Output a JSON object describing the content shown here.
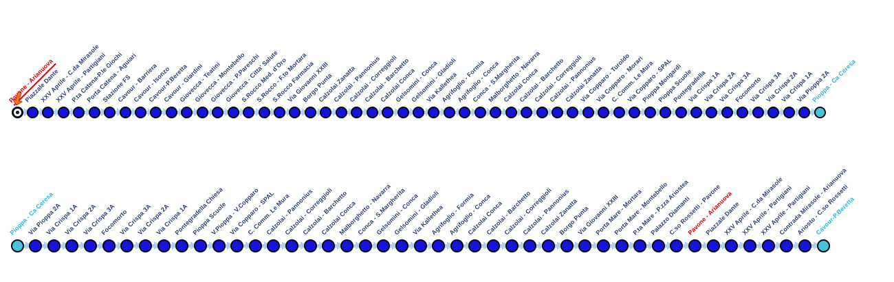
{
  "diagram": {
    "type": "transit-route-stop-diagram",
    "colors": {
      "stop_fill": "#1414dd",
      "stop_border": "#05050f",
      "terminal_fill": "#45c4da",
      "connector": "#aed2ec",
      "label_default": "#2e4273",
      "label_origin": "#dd0000",
      "label_terminal": "#29b6d8",
      "origin_arrow": "#f4731f"
    },
    "lines": [
      {
        "name": "outbound",
        "stops": [
          {
            "label": "Pavone - Arianuova",
            "style": "origin",
            "marker": "origin-ring",
            "arrow": true
          },
          {
            "label": "Piazzale Dante",
            "style": "default",
            "marker": "stop"
          },
          {
            "label": "XXV Aprile - C.da Mirasole",
            "style": "default",
            "marker": "stop"
          },
          {
            "label": "XXV Aprile - Partigiani",
            "style": "default",
            "marker": "stop"
          },
          {
            "label": "P.ta Catena-P.le Giochi",
            "style": "default",
            "marker": "stop"
          },
          {
            "label": "Porta Catena - Aguiari",
            "style": "default",
            "marker": "stop"
          },
          {
            "label": "Stazione FS",
            "style": "default",
            "marker": "stop"
          },
          {
            "label": "Cavour - Barriera",
            "style": "default",
            "marker": "stop"
          },
          {
            "label": "Cavour - Isonzo",
            "style": "default",
            "marker": "stop"
          },
          {
            "label": "Cavour-P.Beretta",
            "style": "default",
            "marker": "stop"
          },
          {
            "label": "Cavour - Giardini",
            "style": "default",
            "marker": "stop"
          },
          {
            "label": "Giovecca - Teatini",
            "style": "default",
            "marker": "stop"
          },
          {
            "label": "Giovecca - Montebello",
            "style": "default",
            "marker": "stop"
          },
          {
            "label": "Giovecca - P.Pareschi",
            "style": "default",
            "marker": "stop"
          },
          {
            "label": "Giovecca - Citta' Salute",
            "style": "default",
            "marker": "stop"
          },
          {
            "label": "S.Rocco Med. d'Oro",
            "style": "default",
            "marker": "stop"
          },
          {
            "label": "S.Rocco - F.to Mortara",
            "style": "default",
            "marker": "stop"
          },
          {
            "label": "S.Rocco Farmacia",
            "style": "default",
            "marker": "stop"
          },
          {
            "label": "Via Giovanni XXIII",
            "style": "default",
            "marker": "stop"
          },
          {
            "label": "Borgo Punta",
            "style": "default",
            "marker": "stop"
          },
          {
            "label": "Calzolai Zanatta",
            "style": "default",
            "marker": "stop"
          },
          {
            "label": "Calzolai - Pannonius",
            "style": "default",
            "marker": "stop"
          },
          {
            "label": "Calzolai - Correggioli",
            "style": "default",
            "marker": "stop"
          },
          {
            "label": "Calzolai - Barchetto",
            "style": "default",
            "marker": "stop"
          },
          {
            "label": "Calzolai Conca",
            "style": "default",
            "marker": "stop"
          },
          {
            "label": "Gelsomini - Conca",
            "style": "default",
            "marker": "stop"
          },
          {
            "label": "Gelsomini - Gladioli",
            "style": "default",
            "marker": "stop"
          },
          {
            "label": "Via Kallethea",
            "style": "default",
            "marker": "stop"
          },
          {
            "label": "Agrifoglio - Formia",
            "style": "default",
            "marker": "stop"
          },
          {
            "label": "Agrifoglio - Conca",
            "style": "default",
            "marker": "stop"
          },
          {
            "label": "Conca - S.Margherita",
            "style": "default",
            "marker": "stop"
          },
          {
            "label": "Malborghetto - Navarra",
            "style": "default",
            "marker": "stop"
          },
          {
            "label": "Calzolai Conca",
            "style": "default",
            "marker": "stop"
          },
          {
            "label": "Calzolai - Barchetto",
            "style": "default",
            "marker": "stop"
          },
          {
            "label": "Calzolai - Correggioli",
            "style": "default",
            "marker": "stop"
          },
          {
            "label": "Calzolai - Pannonius",
            "style": "default",
            "marker": "stop"
          },
          {
            "label": "Calzolai Zanatta",
            "style": "default",
            "marker": "stop"
          },
          {
            "label": "Via Copparo - Turoldo",
            "style": "default",
            "marker": "stop"
          },
          {
            "label": "Via Copparo - Morari",
            "style": "default",
            "marker": "stop"
          },
          {
            "label": "C. Comm. Le Mura",
            "style": "default",
            "marker": "stop"
          },
          {
            "label": "Via Copparo - SPAL",
            "style": "default",
            "marker": "stop"
          },
          {
            "label": "Pioppa Mongardi",
            "style": "default",
            "marker": "stop"
          },
          {
            "label": "Pioppa Scuole",
            "style": "default",
            "marker": "stop"
          },
          {
            "label": "Pontegradella",
            "style": "default",
            "marker": "stop"
          },
          {
            "label": "Via Crispa 1A",
            "style": "default",
            "marker": "stop"
          },
          {
            "label": "Via Crispa 2A",
            "style": "default",
            "marker": "stop"
          },
          {
            "label": "Via Crispa 3A",
            "style": "default",
            "marker": "stop"
          },
          {
            "label": "Focomorto",
            "style": "default",
            "marker": "stop"
          },
          {
            "label": "Via Crispa 3A",
            "style": "default",
            "marker": "stop"
          },
          {
            "label": "Via Crispa 2A",
            "style": "default",
            "marker": "stop"
          },
          {
            "label": "Via Crispa 1A",
            "style": "default",
            "marker": "stop"
          },
          {
            "label": "Via Pioppa 2A",
            "style": "default",
            "marker": "stop"
          },
          {
            "label": "Pioppa - Ca Ceresa",
            "style": "terminal",
            "marker": "terminal"
          }
        ]
      },
      {
        "name": "return",
        "stops": [
          {
            "label": "Pioppa - Ca Ceresa",
            "style": "terminal",
            "marker": "terminal"
          },
          {
            "label": "Via Pioppa 2A",
            "style": "default",
            "marker": "stop"
          },
          {
            "label": "Via Crispa 1A",
            "style": "default",
            "marker": "stop"
          },
          {
            "label": "Via Crispa 2A",
            "style": "default",
            "marker": "stop"
          },
          {
            "label": "Via Crispa 3A",
            "style": "default",
            "marker": "stop"
          },
          {
            "label": "Focomorto",
            "style": "default",
            "marker": "stop"
          },
          {
            "label": "Via Crispa 3A",
            "style": "default",
            "marker": "stop"
          },
          {
            "label": "Via Crispa 2A",
            "style": "default",
            "marker": "stop"
          },
          {
            "label": "Via Crispa 1A",
            "style": "default",
            "marker": "stop"
          },
          {
            "label": "Pontegradella Chiesa",
            "style": "default",
            "marker": "stop"
          },
          {
            "label": "Pioppa Scuole",
            "style": "default",
            "marker": "stop"
          },
          {
            "label": "V.Pioppa - V.Copparo",
            "style": "default",
            "marker": "stop"
          },
          {
            "label": "Via Copparo - SPAL",
            "style": "default",
            "marker": "stop"
          },
          {
            "label": "C. Comm. Le Mura",
            "style": "default",
            "marker": "stop"
          },
          {
            "label": "Calzolai - Pannonius",
            "style": "default",
            "marker": "stop"
          },
          {
            "label": "Calzolai - Correggioli",
            "style": "default",
            "marker": "stop"
          },
          {
            "label": "Calzolai - Barchetto",
            "style": "default",
            "marker": "stop"
          },
          {
            "label": "Calzolai Conca",
            "style": "default",
            "marker": "stop"
          },
          {
            "label": "Malborghetto - Navarra",
            "style": "default",
            "marker": "stop"
          },
          {
            "label": "Conca - S.Margherita",
            "style": "default",
            "marker": "stop"
          },
          {
            "label": "Gelsomini - Conca",
            "style": "default",
            "marker": "stop"
          },
          {
            "label": "Gelsomini - Gladioli",
            "style": "default",
            "marker": "stop"
          },
          {
            "label": "Via Kallethea",
            "style": "default",
            "marker": "stop"
          },
          {
            "label": "Agrifoglio - Formia",
            "style": "default",
            "marker": "stop"
          },
          {
            "label": "Agrifoglio - Conca",
            "style": "default",
            "marker": "stop"
          },
          {
            "label": "Calzolai Conca",
            "style": "default",
            "marker": "stop"
          },
          {
            "label": "Calzolai - Barchetto",
            "style": "default",
            "marker": "stop"
          },
          {
            "label": "Calzolai - Correggioli",
            "style": "default",
            "marker": "stop"
          },
          {
            "label": "Calzolai - Pannonius",
            "style": "default",
            "marker": "stop"
          },
          {
            "label": "Calzolai Zanatta",
            "style": "default",
            "marker": "stop"
          },
          {
            "label": "Borgo Punta",
            "style": "default",
            "marker": "stop"
          },
          {
            "label": "Via Giovanni XXIII",
            "style": "default",
            "marker": "stop"
          },
          {
            "label": "Porta Mare - Mortara",
            "style": "default",
            "marker": "stop"
          },
          {
            "label": "Porta Mare - Montebello",
            "style": "default",
            "marker": "stop"
          },
          {
            "label": "P.ta Mare - P.zza Ariostea",
            "style": "default",
            "marker": "stop"
          },
          {
            "label": "Palazzo Diamanti",
            "style": "default",
            "marker": "stop"
          },
          {
            "label": "C.so Rossetti - Pavone",
            "style": "default",
            "marker": "stop"
          },
          {
            "label": "Pavone - Arianuova",
            "style": "origin-plain",
            "marker": "stop"
          },
          {
            "label": "Piazzale Dante",
            "style": "default",
            "marker": "stop"
          },
          {
            "label": "XXV Aprile - C.da Mirasole",
            "style": "default",
            "marker": "stop"
          },
          {
            "label": "XXV Aprile - Partigiani",
            "style": "default",
            "marker": "stop"
          },
          {
            "label": "XXV Aprile - Partigiani",
            "style": "default",
            "marker": "stop"
          },
          {
            "label": "Contrada Mirasole - Arianuova",
            "style": "default",
            "marker": "stop"
          },
          {
            "label": "Ariosto - C.so Rossetti",
            "style": "default",
            "marker": "stop"
          },
          {
            "label": "Cavour-P.Beretta",
            "style": "terminal",
            "marker": "terminal"
          }
        ]
      }
    ]
  }
}
